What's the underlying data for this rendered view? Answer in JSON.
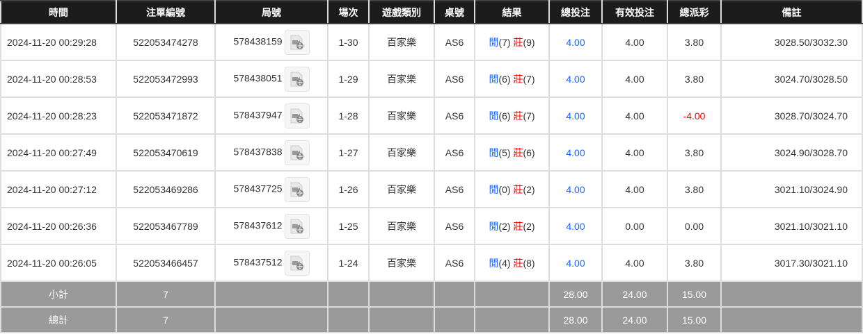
{
  "headers": [
    "時間",
    "注單編號",
    "局號",
    "場次",
    "遊戲類別",
    "桌號",
    "結果",
    "總投注",
    "有效投注",
    "總派彩",
    "備註"
  ],
  "result_labels": {
    "player": "閒",
    "banker": "莊"
  },
  "colors": {
    "player": "#1a66ff",
    "banker": "#ff0000",
    "bet": "#1a66ff",
    "negative": "#ff0000"
  },
  "rows": [
    {
      "time": "2024-11-20 00:29:28",
      "bet_id": "522053474278",
      "round": "578438159",
      "shoe": "1-30",
      "game": "百家樂",
      "table": "AS6",
      "player": "(7)",
      "banker": "(9)",
      "total_bet": "4.00",
      "valid_bet": "4.00",
      "payout": "3.80",
      "note": "3028.50/3032.30"
    },
    {
      "time": "2024-11-20 00:28:53",
      "bet_id": "522053472993",
      "round": "578438051",
      "shoe": "1-29",
      "game": "百家樂",
      "table": "AS6",
      "player": "(6)",
      "banker": "(7)",
      "total_bet": "4.00",
      "valid_bet": "4.00",
      "payout": "3.80",
      "note": "3024.70/3028.50"
    },
    {
      "time": "2024-11-20 00:28:23",
      "bet_id": "522053471872",
      "round": "578437947",
      "shoe": "1-28",
      "game": "百家樂",
      "table": "AS6",
      "player": "(6)",
      "banker": "(7)",
      "total_bet": "4.00",
      "valid_bet": "4.00",
      "payout": "-4.00",
      "note": "3028.70/3024.70"
    },
    {
      "time": "2024-11-20 00:27:49",
      "bet_id": "522053470619",
      "round": "578437838",
      "shoe": "1-27",
      "game": "百家樂",
      "table": "AS6",
      "player": "(5)",
      "banker": "(6)",
      "total_bet": "4.00",
      "valid_bet": "4.00",
      "payout": "3.80",
      "note": "3024.90/3028.70"
    },
    {
      "time": "2024-11-20 00:27:12",
      "bet_id": "522053469286",
      "round": "578437725",
      "shoe": "1-26",
      "game": "百家樂",
      "table": "AS6",
      "player": "(0)",
      "banker": "(2)",
      "total_bet": "4.00",
      "valid_bet": "4.00",
      "payout": "3.80",
      "note": "3021.10/3024.90"
    },
    {
      "time": "2024-11-20 00:26:36",
      "bet_id": "522053467789",
      "round": "578437612",
      "shoe": "1-25",
      "game": "百家樂",
      "table": "AS6",
      "player": "(2)",
      "banker": "(2)",
      "total_bet": "4.00",
      "valid_bet": "0.00",
      "payout": "0.00",
      "note": "3021.10/3021.10"
    },
    {
      "time": "2024-11-20 00:26:05",
      "bet_id": "522053466457",
      "round": "578437512",
      "shoe": "1-24",
      "game": "百家樂",
      "table": "AS6",
      "player": "(4)",
      "banker": "(8)",
      "total_bet": "4.00",
      "valid_bet": "4.00",
      "payout": "3.80",
      "note": "3017.30/3021.10"
    }
  ],
  "summary": [
    {
      "label": "小計",
      "count": "7",
      "total_bet": "28.00",
      "valid_bet": "24.00",
      "payout": "15.00"
    },
    {
      "label": "總計",
      "count": "7",
      "total_bet": "28.00",
      "valid_bet": "24.00",
      "payout": "15.00"
    }
  ]
}
